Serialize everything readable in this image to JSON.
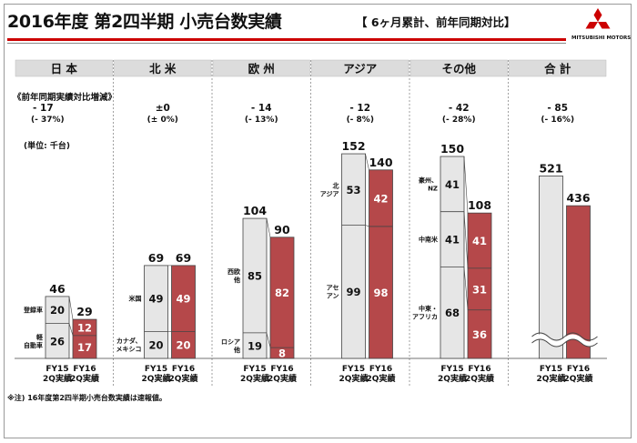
{
  "header": {
    "title": "2016年度 第2四半期 小売台数実績",
    "subtitle": "【 6ヶ月累計、前年同期対比】",
    "logo_text": "MITSUBISHI MOTORS"
  },
  "diff_title": "《前年同期実績対比増減》",
  "unit_label": "(単位: 千台)",
  "footnote": "※注) 16年度第2四半期小売台数実績は速報値。",
  "colors": {
    "fy15": "#e6e6e6",
    "fy16": "#b5484a",
    "accent": "#cc0000",
    "header_bg": "#dcdcdc"
  },
  "chart_data": {
    "type": "bar",
    "stacked": true,
    "categories": [
      "日 本",
      "北 米",
      "欧 州",
      "アジア",
      "その他",
      "合 計"
    ],
    "x_labels": [
      {
        "line1": "FY15",
        "line2": "2Q実績"
      },
      {
        "line1": "FY16",
        "line2": "2Q実績"
      }
    ],
    "groups": [
      {
        "name": "日 本",
        "diff_value": "- 17",
        "diff_pct": "(- 37%)",
        "segment_labels": [
          "登録車",
          "軽\n自動車"
        ],
        "fy15": {
          "total": 46,
          "segments": [
            20,
            26
          ]
        },
        "fy16": {
          "total": 29,
          "segments": [
            12,
            17
          ]
        }
      },
      {
        "name": "北 米",
        "diff_value": "±0",
        "diff_pct": "(± 0%)",
        "segment_labels": [
          "米国",
          "カナダ、\nメキシコ"
        ],
        "fy15": {
          "total": 69,
          "segments": [
            49,
            20
          ]
        },
        "fy16": {
          "total": 69,
          "segments": [
            49,
            20
          ]
        }
      },
      {
        "name": "欧 州",
        "diff_value": "- 14",
        "diff_pct": "(- 13%)",
        "segment_labels": [
          "西欧\n他",
          "ロシア\n他"
        ],
        "fy15": {
          "total": 104,
          "segments": [
            85,
            19
          ]
        },
        "fy16": {
          "total": 90,
          "segments": [
            82,
            8
          ]
        }
      },
      {
        "name": "アジア",
        "diff_value": "- 12",
        "diff_pct": "(- 8%)",
        "segment_labels": [
          "北\nアジア",
          "アセ\nアン"
        ],
        "fy15": {
          "total": 152,
          "segments": [
            53,
            99
          ]
        },
        "fy16": {
          "total": 140,
          "segments": [
            42,
            98
          ]
        }
      },
      {
        "name": "その他",
        "diff_value": "- 42",
        "diff_pct": "(- 28%)",
        "segment_labels": [
          "豪州、\nNZ",
          "中南米",
          "中東・\nアフリカ"
        ],
        "fy15": {
          "total": 150,
          "segments": [
            41,
            41,
            68
          ]
        },
        "fy16": {
          "total": 108,
          "segments": [
            41,
            31,
            36
          ]
        }
      },
      {
        "name": "合 計",
        "diff_value": "- 85",
        "diff_pct": "(- 16%)",
        "segment_labels": [],
        "axis_break": true,
        "fy15": {
          "total": 521,
          "segments": []
        },
        "fy16": {
          "total": 436,
          "segments": []
        }
      }
    ]
  }
}
